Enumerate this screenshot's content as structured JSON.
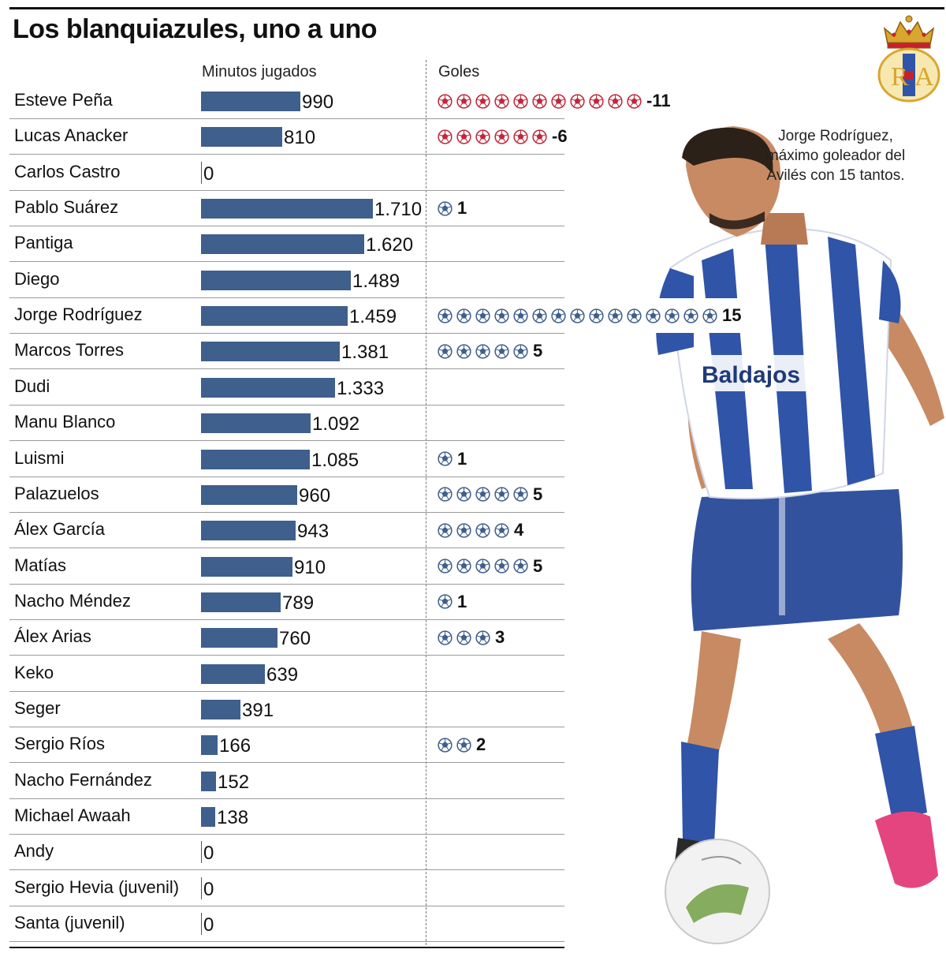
{
  "title": "Los blanquiazules, uno a uno",
  "headers": {
    "minutes": "Minutos jugados",
    "goals": "Goles"
  },
  "caption": "Jorge Rodríguez, máximo goleador del Avilés con 15 tantos.",
  "logo": {
    "monogram": "RA",
    "icon": "club-crest-icon"
  },
  "colors": {
    "bar": "#3f5f8c",
    "ball_scored": "#3f5f8c",
    "ball_conceded": "#c2273a",
    "shirt_blue": "#2f54a8"
  },
  "chart_data": {
    "type": "bar",
    "orientation": "horizontal",
    "title": "Los blanquiazules, uno a uno",
    "series": [
      {
        "name": "Minutos jugados",
        "unit": "minutes"
      },
      {
        "name": "Goles",
        "unit": "goals"
      }
    ],
    "players": [
      {
        "name": "Esteve Peña",
        "minutes": 990,
        "minutes_label": "990",
        "goals": -11,
        "goals_label": "-11",
        "conceded": true
      },
      {
        "name": "Lucas Anacker",
        "minutes": 810,
        "minutes_label": "810",
        "goals": -6,
        "goals_label": "-6",
        "conceded": true
      },
      {
        "name": "Carlos Castro",
        "minutes": 0,
        "minutes_label": "0",
        "goals": 0,
        "goals_label": ""
      },
      {
        "name": "Pablo Suárez",
        "minutes": 1710,
        "minutes_label": "1.710",
        "goals": 1,
        "goals_label": "1"
      },
      {
        "name": "Pantiga",
        "minutes": 1620,
        "minutes_label": "1.620",
        "goals": 0,
        "goals_label": ""
      },
      {
        "name": "Diego",
        "minutes": 1489,
        "minutes_label": "1.489",
        "goals": 0,
        "goals_label": ""
      },
      {
        "name": "Jorge Rodríguez",
        "minutes": 1459,
        "minutes_label": "1.459",
        "goals": 15,
        "goals_label": "15"
      },
      {
        "name": "Marcos Torres",
        "minutes": 1381,
        "minutes_label": "1.381",
        "goals": 5,
        "goals_label": "5"
      },
      {
        "name": "Dudi",
        "minutes": 1333,
        "minutes_label": "1.333",
        "goals": 0,
        "goals_label": ""
      },
      {
        "name": "Manu Blanco",
        "minutes": 1092,
        "minutes_label": "1.092",
        "goals": 0,
        "goals_label": ""
      },
      {
        "name": "Luismi",
        "minutes": 1085,
        "minutes_label": "1.085",
        "goals": 1,
        "goals_label": "1"
      },
      {
        "name": "Palazuelos",
        "minutes": 960,
        "minutes_label": "960",
        "goals": 5,
        "goals_label": "5"
      },
      {
        "name": "Álex García",
        "minutes": 943,
        "minutes_label": "943",
        "goals": 4,
        "goals_label": "4"
      },
      {
        "name": "Matías",
        "minutes": 910,
        "minutes_label": "910",
        "goals": 5,
        "goals_label": "5"
      },
      {
        "name": "Nacho Méndez",
        "minutes": 789,
        "minutes_label": "789",
        "goals": 1,
        "goals_label": "1"
      },
      {
        "name": "Álex Arias",
        "minutes": 760,
        "minutes_label": "760",
        "goals": 3,
        "goals_label": "3"
      },
      {
        "name": "Keko",
        "minutes": 639,
        "minutes_label": "639",
        "goals": 0,
        "goals_label": ""
      },
      {
        "name": "Seger",
        "minutes": 391,
        "minutes_label": "391",
        "goals": 0,
        "goals_label": ""
      },
      {
        "name": "Sergio Ríos",
        "minutes": 166,
        "minutes_label": "166",
        "goals": 2,
        "goals_label": "2"
      },
      {
        "name": "Nacho Fernández",
        "minutes": 152,
        "minutes_label": "152",
        "goals": 0,
        "goals_label": ""
      },
      {
        "name": "Michael Awaah",
        "minutes": 138,
        "minutes_label": "138",
        "goals": 0,
        "goals_label": ""
      },
      {
        "name": "Andy",
        "minutes": 0,
        "minutes_label": "0",
        "goals": 0,
        "goals_label": ""
      },
      {
        "name": "Sergio Hevia (juvenil)",
        "minutes": 0,
        "minutes_label": "0",
        "goals": 0,
        "goals_label": ""
      },
      {
        "name": "Santa (juvenil)",
        "minutes": 0,
        "minutes_label": "0",
        "goals": 0,
        "goals_label": ""
      }
    ],
    "minutes_axis_max": 1710
  }
}
